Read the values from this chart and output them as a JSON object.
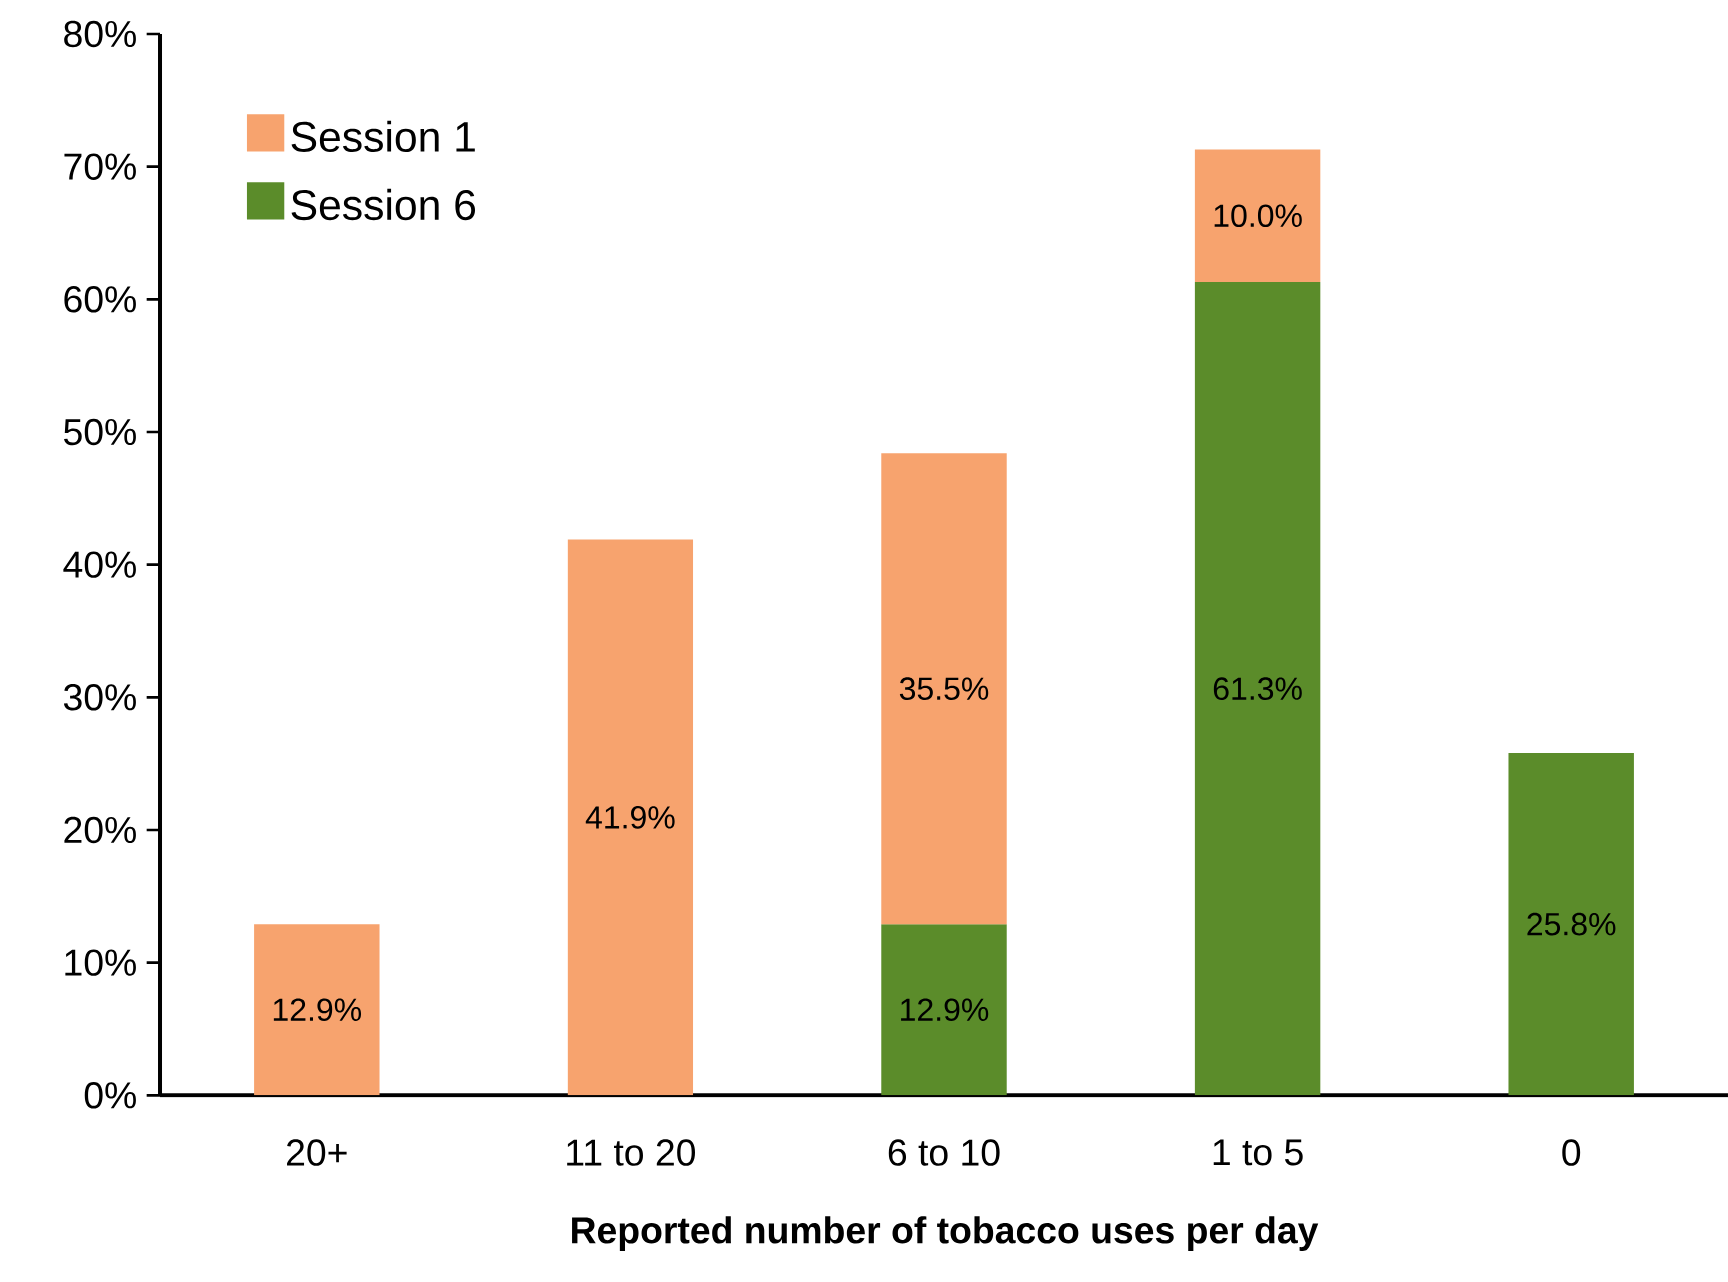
{
  "chart_data": {
    "type": "bar",
    "stacked": true,
    "categories": [
      "20+",
      "11 to 20",
      "6 to 10",
      "1 to 5",
      "0"
    ],
    "xlabel": "Reported number of tobacco uses per day",
    "series": [
      {
        "name": "Session 6",
        "color": "#5b8c2a",
        "values": [
          null,
          null,
          12.9,
          61.3,
          25.8
        ],
        "value_labels": [
          null,
          null,
          "12.9%",
          "61.3%",
          "25.8%"
        ]
      },
      {
        "name": "Session 1",
        "color": "#f7a36e",
        "values": [
          12.9,
          41.9,
          35.5,
          10.0,
          null
        ],
        "value_labels": [
          "12.9%",
          "41.9%",
          "35.5%",
          "10.0%",
          null
        ]
      }
    ],
    "ylim": [
      0,
      80
    ],
    "yticks": [
      {
        "value": 0,
        "label": "0%"
      },
      {
        "value": 10,
        "label": "10%"
      },
      {
        "value": 20,
        "label": "20%"
      },
      {
        "value": 30,
        "label": "30%"
      },
      {
        "value": 40,
        "label": "40%"
      },
      {
        "value": 50,
        "label": "50%"
      },
      {
        "value": 60,
        "label": "60%"
      },
      {
        "value": 70,
        "label": "70%"
      },
      {
        "value": 80,
        "label": "80%"
      }
    ],
    "legend": "top left",
    "grid": false
  }
}
